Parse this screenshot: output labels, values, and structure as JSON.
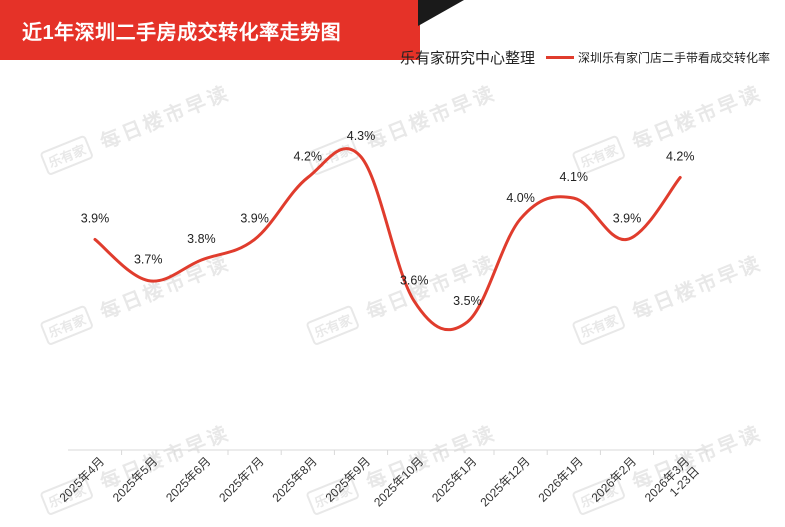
{
  "header": {
    "title": "近1年深圳二手房成交转化率走势图",
    "source": "乐有家研究中心整理"
  },
  "watermark": {
    "logo": "乐有家",
    "text": "每日楼市早读"
  },
  "colors": {
    "banner": "#e53228",
    "line": "#e03c2d"
  },
  "chart_data": {
    "type": "line",
    "title": "近1年深圳二手房成交转化率走势图",
    "xlabel": "",
    "ylabel": "",
    "ylim": [
      3.0,
      4.6
    ],
    "grid": false,
    "legend_position": "top-right",
    "categories": [
      "2025年4月",
      "2025年5月",
      "2025年6月",
      "2025年7月",
      "2025年8月",
      "2025年9月",
      "2025年10月",
      "2025年1月",
      "2025年12月",
      "2026年1月",
      "2026年2月",
      "2026年3月1-23日"
    ],
    "series": [
      {
        "name": "深圳乐有家门店二手带看成交转化率",
        "values": [
          3.9,
          3.7,
          3.8,
          3.9,
          4.2,
          4.3,
          3.6,
          3.5,
          4.0,
          4.1,
          3.9,
          4.2
        ],
        "labels": [
          "3.9%",
          "3.7%",
          "3.8%",
          "3.9%",
          "4.2%",
          "4.3%",
          "3.6%",
          "3.5%",
          "4.0%",
          "4.1%",
          "3.9%",
          "4.2%"
        ]
      }
    ]
  }
}
